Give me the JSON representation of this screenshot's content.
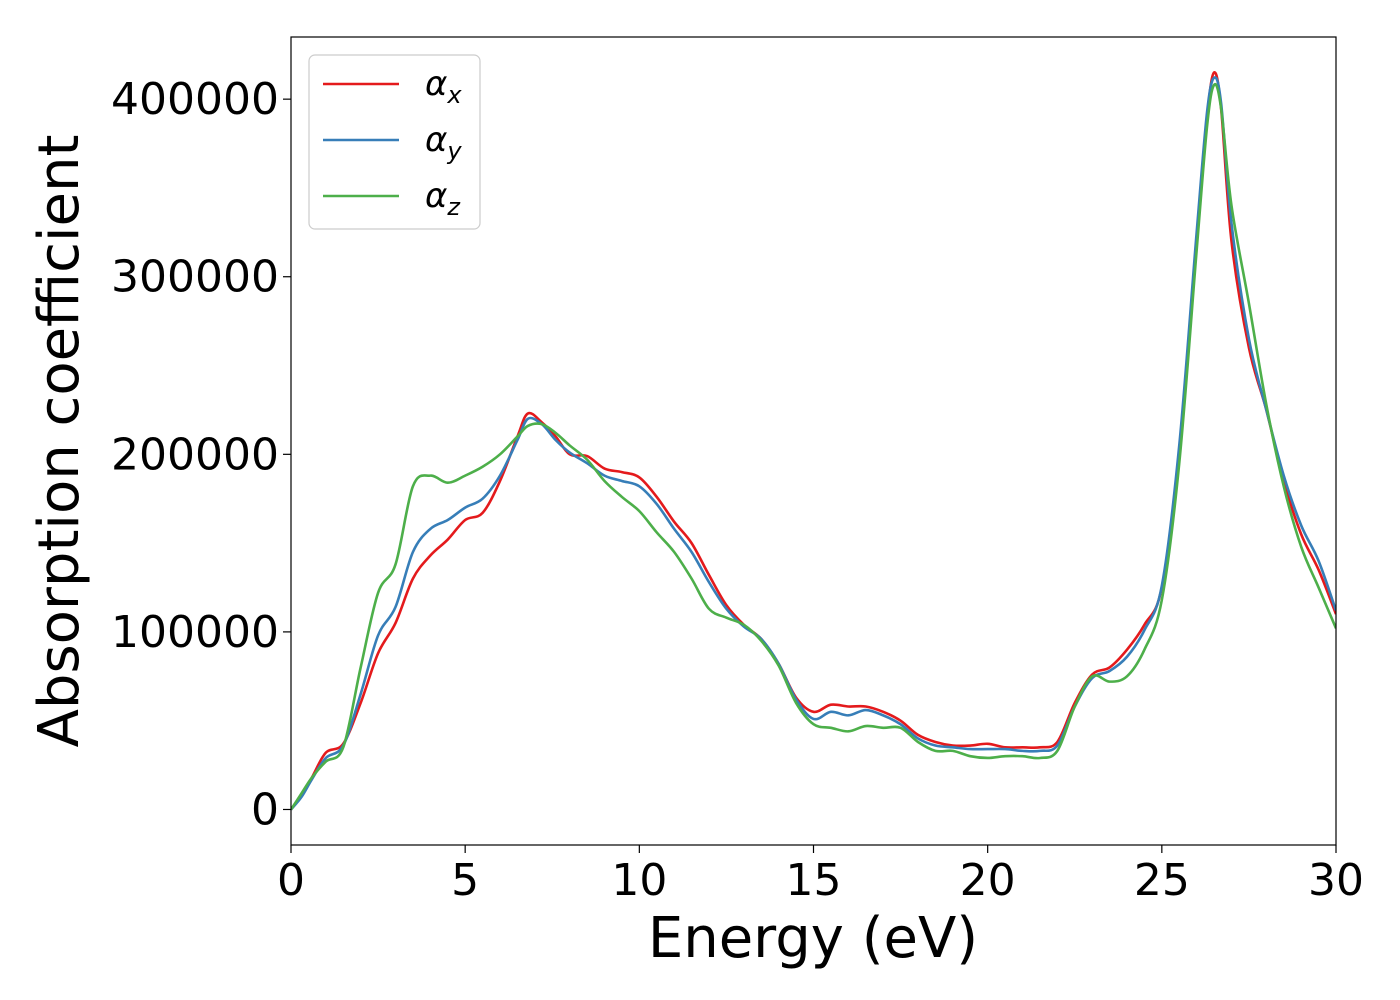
{
  "chart_data": {
    "type": "line",
    "title": "",
    "xlabel": "Energy (eV)",
    "ylabel": "Absorption coefficient",
    "xlim": [
      0,
      30
    ],
    "ylim": [
      -20000,
      435000
    ],
    "xticks": [
      0,
      5,
      10,
      15,
      20,
      25,
      30
    ],
    "xtick_labels": [
      "0",
      "5",
      "10",
      "15",
      "20",
      "25",
      "30"
    ],
    "yticks": [
      0,
      100000,
      200000,
      300000,
      400000
    ],
    "ytick_labels": [
      "0",
      "100000",
      "200000",
      "300000",
      "400000"
    ],
    "grid": false,
    "legend_position": "top-left",
    "series": [
      {
        "name": "αx",
        "legend_base": "α",
        "legend_sub": "x",
        "color": "#e41a1c",
        "x": [
          0,
          0.3,
          0.6,
          1.0,
          1.5,
          2.0,
          2.5,
          3.0,
          3.5,
          4.0,
          4.5,
          5.0,
          5.5,
          6.0,
          6.5,
          6.8,
          7.2,
          7.6,
          8.0,
          8.5,
          9.0,
          9.5,
          10.0,
          10.5,
          11.0,
          11.5,
          12.0,
          12.5,
          13.0,
          13.5,
          14.0,
          14.5,
          15.0,
          15.5,
          16.0,
          16.5,
          17.0,
          17.5,
          18.0,
          18.5,
          19.0,
          19.5,
          20.0,
          20.5,
          21.0,
          21.5,
          22.0,
          22.5,
          23.0,
          23.5,
          24.0,
          24.5,
          25.0,
          25.5,
          26.0,
          26.3,
          26.5,
          26.7,
          27.0,
          27.5,
          28.0,
          28.5,
          29.0,
          29.5,
          30.0
        ],
        "y": [
          0,
          8000,
          18000,
          32000,
          37000,
          60000,
          88000,
          105000,
          130000,
          143000,
          152000,
          163000,
          167000,
          185000,
          210000,
          223000,
          218000,
          210000,
          200000,
          199000,
          192000,
          190000,
          187000,
          176000,
          162000,
          150000,
          132000,
          115000,
          104000,
          96000,
          82000,
          63000,
          55000,
          59000,
          58000,
          58000,
          55000,
          50000,
          42000,
          38000,
          36000,
          36000,
          37000,
          35000,
          35000,
          35000,
          38000,
          60000,
          76000,
          80000,
          90000,
          104000,
          125000,
          200000,
          320000,
          390000,
          415000,
          395000,
          320000,
          260000,
          225000,
          185000,
          155000,
          135000,
          110000
        ]
      },
      {
        "name": "αy",
        "legend_base": "α",
        "legend_sub": "y",
        "color": "#377eb8",
        "x": [
          0,
          0.3,
          0.6,
          1.0,
          1.5,
          2.0,
          2.5,
          3.0,
          3.5,
          4.0,
          4.5,
          5.0,
          5.5,
          6.0,
          6.5,
          6.8,
          7.2,
          7.6,
          8.0,
          8.5,
          9.0,
          9.5,
          10.0,
          10.5,
          11.0,
          11.5,
          12.0,
          12.5,
          13.0,
          13.5,
          14.0,
          14.5,
          15.0,
          15.5,
          16.0,
          16.5,
          17.0,
          17.5,
          18.0,
          18.5,
          19.0,
          19.5,
          20.0,
          20.5,
          21.0,
          21.5,
          22.0,
          22.5,
          23.0,
          23.5,
          24.0,
          24.5,
          25.0,
          25.5,
          26.0,
          26.3,
          26.5,
          26.7,
          27.0,
          27.5,
          28.0,
          28.5,
          29.0,
          29.5,
          30.0
        ],
        "y": [
          0,
          7000,
          17000,
          29000,
          36000,
          65000,
          98000,
          114000,
          145000,
          158000,
          163000,
          170000,
          175000,
          188000,
          208000,
          220000,
          217000,
          208000,
          201000,
          195000,
          188000,
          185000,
          182000,
          172000,
          158000,
          145000,
          128000,
          113000,
          103000,
          96000,
          82000,
          62000,
          51000,
          55000,
          53000,
          56000,
          53000,
          48000,
          40000,
          36000,
          35000,
          34000,
          34000,
          34000,
          33000,
          33000,
          36000,
          58000,
          74000,
          78000,
          86000,
          101000,
          126000,
          205000,
          325000,
          393000,
          412000,
          398000,
          330000,
          265000,
          225000,
          188000,
          160000,
          140000,
          112000
        ]
      },
      {
        "name": "αz",
        "legend_base": "α",
        "legend_sub": "z",
        "color": "#4daf4a",
        "x": [
          0,
          0.3,
          0.6,
          1.0,
          1.5,
          2.0,
          2.5,
          3.0,
          3.5,
          4.0,
          4.5,
          5.0,
          5.5,
          6.0,
          6.5,
          6.8,
          7.2,
          7.6,
          8.0,
          8.5,
          9.0,
          9.5,
          10.0,
          10.5,
          11.0,
          11.5,
          12.0,
          12.5,
          13.0,
          13.5,
          14.0,
          14.5,
          15.0,
          15.5,
          16.0,
          16.5,
          17.0,
          17.5,
          18.0,
          18.5,
          19.0,
          19.5,
          20.0,
          20.5,
          21.0,
          21.5,
          22.0,
          22.5,
          23.0,
          23.5,
          24.0,
          24.5,
          25.0,
          25.5,
          26.0,
          26.3,
          26.5,
          26.7,
          27.0,
          27.5,
          28.0,
          28.5,
          29.0,
          29.5,
          30.0
        ],
        "y": [
          0,
          9000,
          18000,
          27000,
          35000,
          80000,
          122000,
          138000,
          182000,
          188000,
          184000,
          188000,
          193000,
          200000,
          210000,
          216000,
          217000,
          212000,
          205000,
          197000,
          185000,
          176000,
          168000,
          156000,
          145000,
          130000,
          113000,
          108000,
          104000,
          95000,
          81000,
          60000,
          48000,
          46000,
          44000,
          47000,
          46000,
          46000,
          38000,
          33000,
          33000,
          30000,
          29000,
          30000,
          30000,
          29000,
          33000,
          58000,
          75000,
          72000,
          75000,
          90000,
          118000,
          195000,
          315000,
          385000,
          408000,
          395000,
          340000,
          285000,
          228000,
          182000,
          148000,
          125000,
          102000
        ]
      }
    ]
  }
}
